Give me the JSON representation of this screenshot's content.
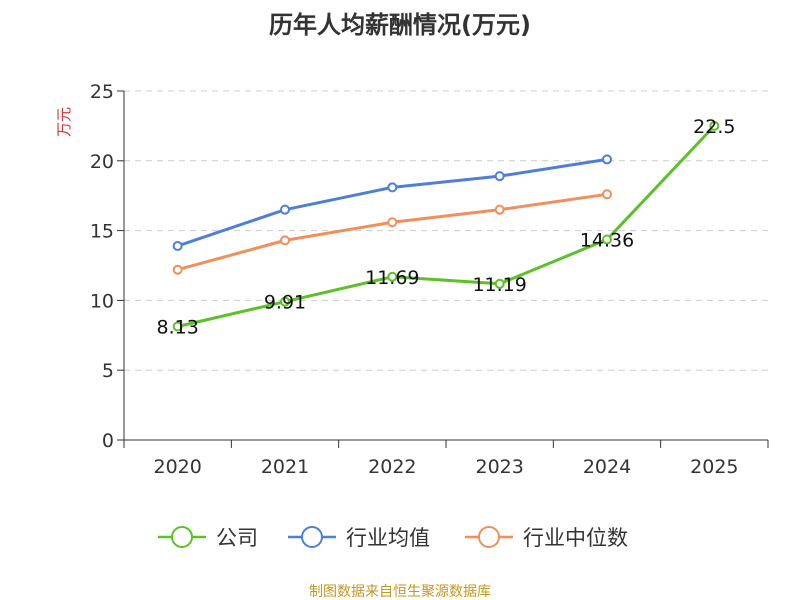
{
  "chart_data": {
    "type": "line",
    "title": "历年人均薪酬情况(万元)",
    "ylabel": "万元",
    "xlabel": "",
    "categories": [
      "2020",
      "2021",
      "2022",
      "2023",
      "2024",
      "2025"
    ],
    "ylim": [
      0,
      25
    ],
    "yticks": [
      0,
      5,
      10,
      15,
      20,
      25
    ],
    "grid": true,
    "legend_position": "bottom",
    "series": [
      {
        "name": "公司",
        "color": "#5cc128",
        "values": [
          8.13,
          9.91,
          11.69,
          11.19,
          14.36,
          22.5
        ],
        "labels": [
          "8.13",
          "9.91",
          "11.69",
          "11.19",
          "14.36",
          "22.5"
        ]
      },
      {
        "name": "行业均值",
        "color": "#4e7fd8",
        "values": [
          13.9,
          16.5,
          18.1,
          18.9,
          20.1,
          null
        ]
      },
      {
        "name": "行业中位数",
        "color": "#f38e5a",
        "values": [
          12.2,
          14.3,
          15.6,
          16.5,
          17.6,
          null
        ]
      }
    ]
  },
  "source": "制图数据来自恒生聚源数据库",
  "colors": {
    "ylabel": "#e03030",
    "source": "#c8961e",
    "axis": "#333333",
    "grid": "#cccccc"
  }
}
